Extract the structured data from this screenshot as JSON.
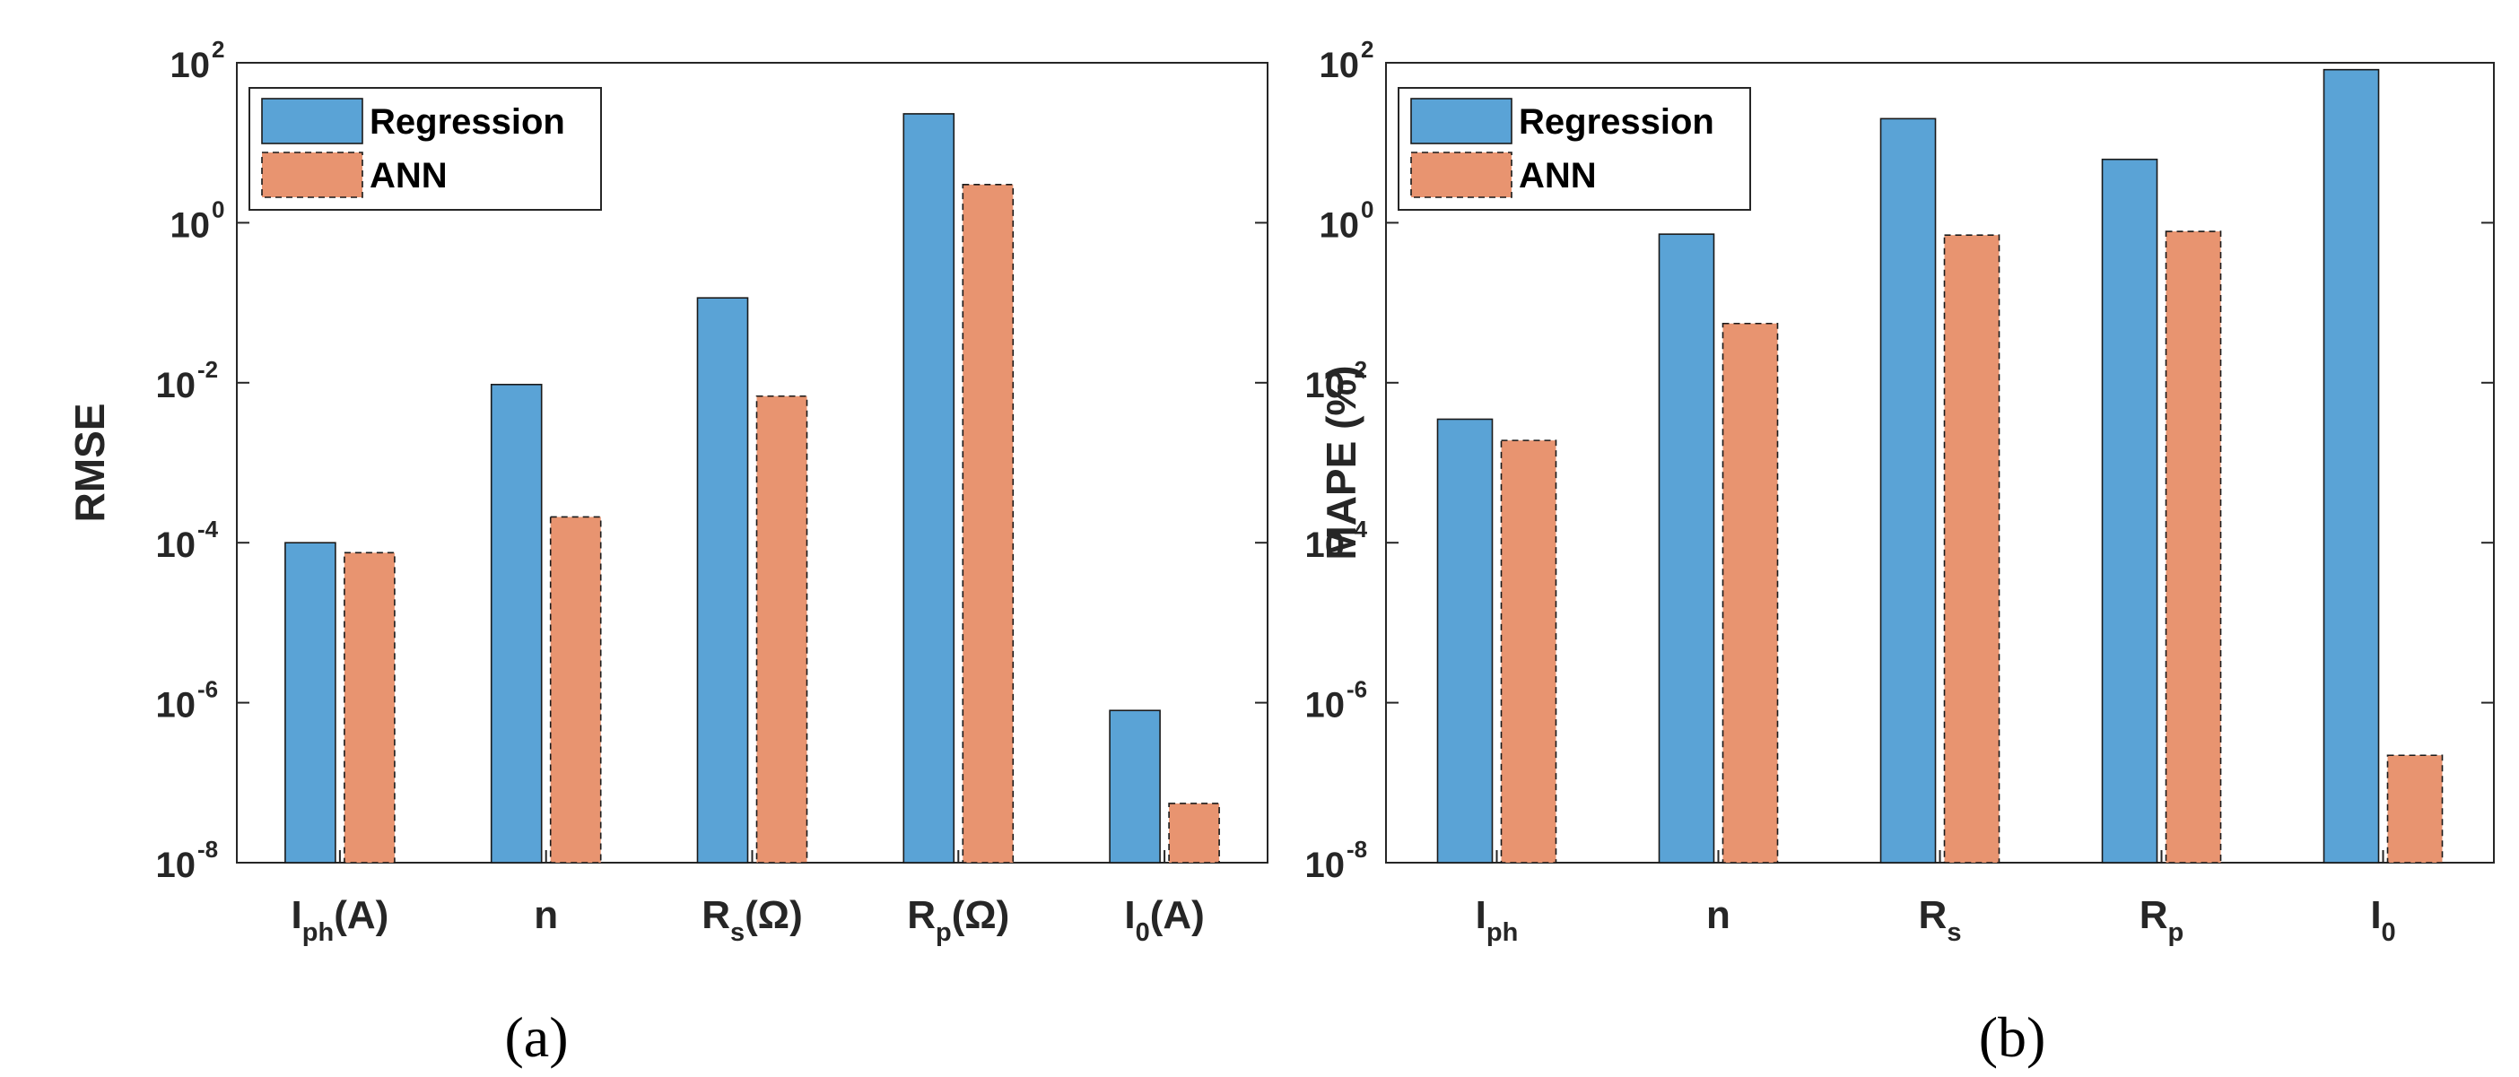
{
  "colors": {
    "regression": "#5aa3d6",
    "ann": "#e89470",
    "axis": "#262626",
    "bar_edge": "#1a1a1a"
  },
  "chart_data": [
    {
      "type": "bar",
      "panel_label": "(a)",
      "ylabel": "RMSE",
      "yscale": "log",
      "ylim": [
        1e-08,
        100
      ],
      "y_ticks": [
        {
          "base": "10",
          "exp": "2"
        },
        {
          "base": "10",
          "exp": "0"
        },
        {
          "base": "10",
          "exp": "-2"
        },
        {
          "base": "10",
          "exp": "-4"
        },
        {
          "base": "10",
          "exp": "-6"
        },
        {
          "base": "10",
          "exp": "-8"
        }
      ],
      "categories": [
        {
          "main": "I",
          "sub": "ph",
          "suffix": "(A)"
        },
        {
          "main": "n",
          "sub": "",
          "suffix": ""
        },
        {
          "main": "R",
          "sub": "s",
          "suffix": "(Ω)"
        },
        {
          "main": "R",
          "sub": "p",
          "suffix": "(Ω)"
        },
        {
          "main": "I",
          "sub": "0",
          "suffix": "(A)"
        }
      ],
      "series": [
        {
          "name": "Regression",
          "values": [
            0.0001,
            0.0095,
            0.115,
            23,
            8e-07
          ]
        },
        {
          "name": "ANN",
          "values": [
            7.5e-05,
            0.00021,
            0.0068,
            3.0,
            5.5e-08
          ]
        }
      ],
      "legend": "top-left",
      "grid": false
    },
    {
      "type": "bar",
      "panel_label": "(b)",
      "ylabel": "MAPE (%)",
      "yscale": "log",
      "ylim": [
        1e-08,
        100
      ],
      "y_ticks": [
        {
          "base": "10",
          "exp": "2"
        },
        {
          "base": "10",
          "exp": "0"
        },
        {
          "base": "10",
          "exp": "-2"
        },
        {
          "base": "10",
          "exp": "-4"
        },
        {
          "base": "10",
          "exp": "-6"
        },
        {
          "base": "10",
          "exp": "-8"
        }
      ],
      "categories": [
        {
          "main": "I",
          "sub": "ph",
          "suffix": ""
        },
        {
          "main": "n",
          "sub": "",
          "suffix": ""
        },
        {
          "main": "R",
          "sub": "s",
          "suffix": ""
        },
        {
          "main": "R",
          "sub": "p",
          "suffix": ""
        },
        {
          "main": "I",
          "sub": "0",
          "suffix": ""
        }
      ],
      "series": [
        {
          "name": "Regression",
          "values": [
            0.0035,
            0.72,
            20,
            6.2,
            82
          ]
        },
        {
          "name": "ANN",
          "values": [
            0.0019,
            0.055,
            0.7,
            0.78,
            2.2e-07
          ]
        }
      ],
      "legend": "top-left",
      "grid": false
    }
  ]
}
